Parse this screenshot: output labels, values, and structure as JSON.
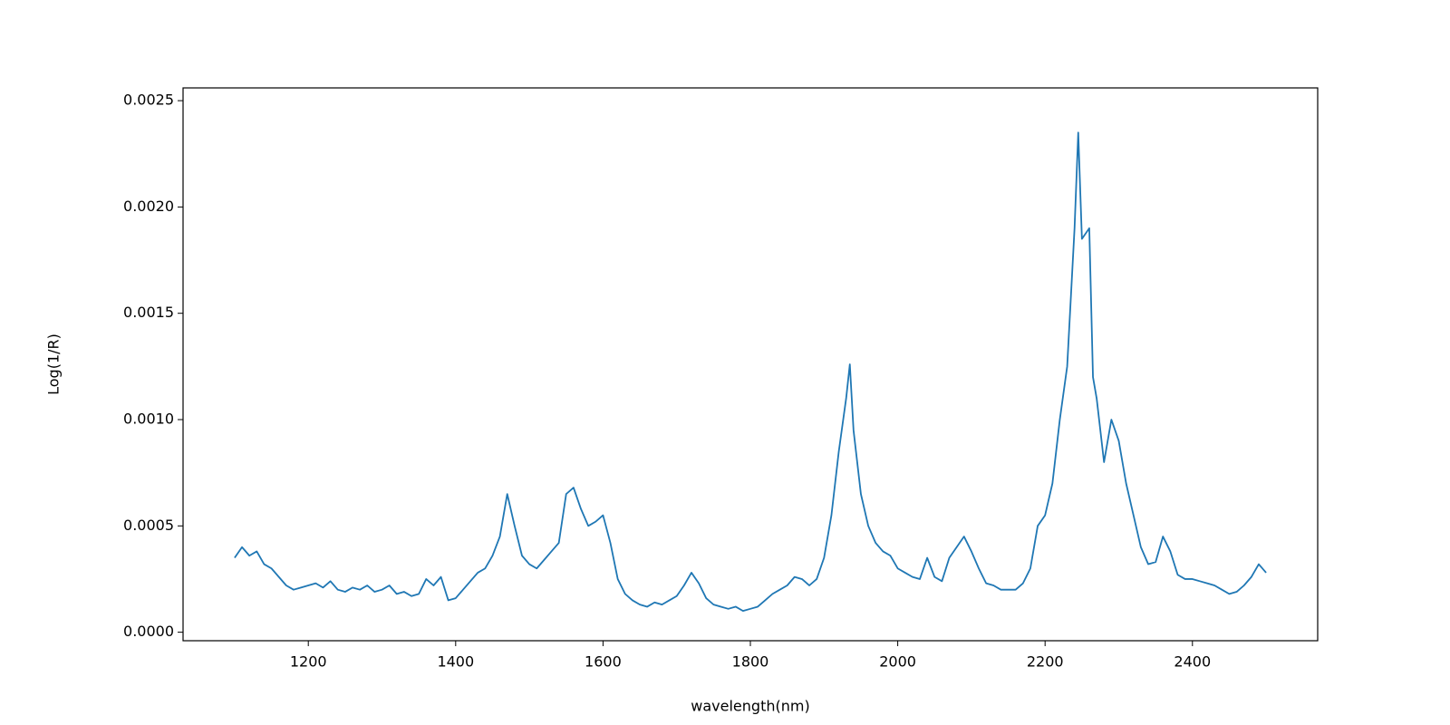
{
  "chart_data": {
    "type": "line",
    "xlabel": "wavelength(nm)",
    "ylabel": "Log(1/R)",
    "color": "#1f77b4",
    "x": [
      1100,
      1110,
      1120,
      1130,
      1140,
      1150,
      1160,
      1170,
      1180,
      1190,
      1200,
      1210,
      1220,
      1230,
      1240,
      1250,
      1260,
      1270,
      1280,
      1290,
      1300,
      1310,
      1320,
      1330,
      1340,
      1350,
      1360,
      1370,
      1380,
      1390,
      1400,
      1410,
      1420,
      1430,
      1440,
      1450,
      1460,
      1470,
      1480,
      1490,
      1500,
      1510,
      1520,
      1530,
      1540,
      1550,
      1560,
      1570,
      1580,
      1590,
      1600,
      1610,
      1620,
      1630,
      1640,
      1650,
      1660,
      1670,
      1680,
      1690,
      1700,
      1710,
      1720,
      1730,
      1740,
      1750,
      1760,
      1770,
      1780,
      1790,
      1800,
      1810,
      1820,
      1830,
      1840,
      1850,
      1860,
      1870,
      1880,
      1890,
      1900,
      1910,
      1920,
      1930,
      1935,
      1940,
      1950,
      1960,
      1970,
      1980,
      1990,
      2000,
      2010,
      2020,
      2030,
      2040,
      2050,
      2060,
      2070,
      2080,
      2090,
      2100,
      2110,
      2120,
      2130,
      2140,
      2150,
      2160,
      2170,
      2180,
      2190,
      2200,
      2210,
      2220,
      2230,
      2240,
      2245,
      2250,
      2260,
      2265,
      2270,
      2280,
      2290,
      2300,
      2310,
      2320,
      2330,
      2340,
      2350,
      2360,
      2370,
      2380,
      2390,
      2400,
      2410,
      2420,
      2430,
      2440,
      2450,
      2460,
      2470,
      2480,
      2490,
      2500
    ],
    "values": [
      0.00035,
      0.0004,
      0.00036,
      0.00038,
      0.00032,
      0.0003,
      0.00026,
      0.00022,
      0.0002,
      0.00021,
      0.00022,
      0.00023,
      0.00021,
      0.00024,
      0.0002,
      0.00019,
      0.00021,
      0.0002,
      0.00022,
      0.00019,
      0.0002,
      0.00022,
      0.00018,
      0.00019,
      0.00017,
      0.00018,
      0.00025,
      0.00022,
      0.00026,
      0.00015,
      0.00016,
      0.0002,
      0.00024,
      0.00028,
      0.0003,
      0.00036,
      0.00045,
      0.00065,
      0.0005,
      0.00036,
      0.00032,
      0.0003,
      0.00034,
      0.00038,
      0.00042,
      0.00065,
      0.00068,
      0.00058,
      0.0005,
      0.00052,
      0.00055,
      0.00042,
      0.00025,
      0.00018,
      0.00015,
      0.00013,
      0.00012,
      0.00014,
      0.00013,
      0.00015,
      0.00017,
      0.00022,
      0.00028,
      0.00023,
      0.00016,
      0.00013,
      0.00012,
      0.00011,
      0.00012,
      0.0001,
      0.00011,
      0.00012,
      0.00015,
      0.00018,
      0.0002,
      0.00022,
      0.00026,
      0.00025,
      0.00022,
      0.00025,
      0.00035,
      0.00055,
      0.00085,
      0.0011,
      0.00126,
      0.00095,
      0.00065,
      0.0005,
      0.00042,
      0.00038,
      0.00036,
      0.0003,
      0.00028,
      0.00026,
      0.00025,
      0.00035,
      0.00026,
      0.00024,
      0.00035,
      0.0004,
      0.00045,
      0.00038,
      0.0003,
      0.00023,
      0.00022,
      0.0002,
      0.0002,
      0.0002,
      0.00023,
      0.0003,
      0.0005,
      0.00055,
      0.0007,
      0.001,
      0.00125,
      0.0019,
      0.00235,
      0.00185,
      0.0019,
      0.0012,
      0.0011,
      0.0008,
      0.001,
      0.0009,
      0.0007,
      0.00055,
      0.0004,
      0.00032,
      0.00033,
      0.00045,
      0.00038,
      0.00027,
      0.00025,
      0.00025,
      0.00024,
      0.00023,
      0.00022,
      0.0002,
      0.00018,
      0.00019,
      0.00022,
      0.00026,
      0.00032,
      0.00028
    ],
    "xlim": [
      1030,
      2570
    ],
    "xticks": [
      1200,
      1400,
      1600,
      1800,
      2000,
      2200,
      2400
    ],
    "ylim": [
      -4e-05,
      0.00256
    ],
    "yticks": [
      {
        "value": 0,
        "label": "0.0000"
      },
      0.0005,
      {
        "value": 0.001,
        "label": "0.0010"
      },
      0.0015,
      {
        "value": 0.002,
        "label": "0.0020"
      },
      0.0025
    ]
  }
}
